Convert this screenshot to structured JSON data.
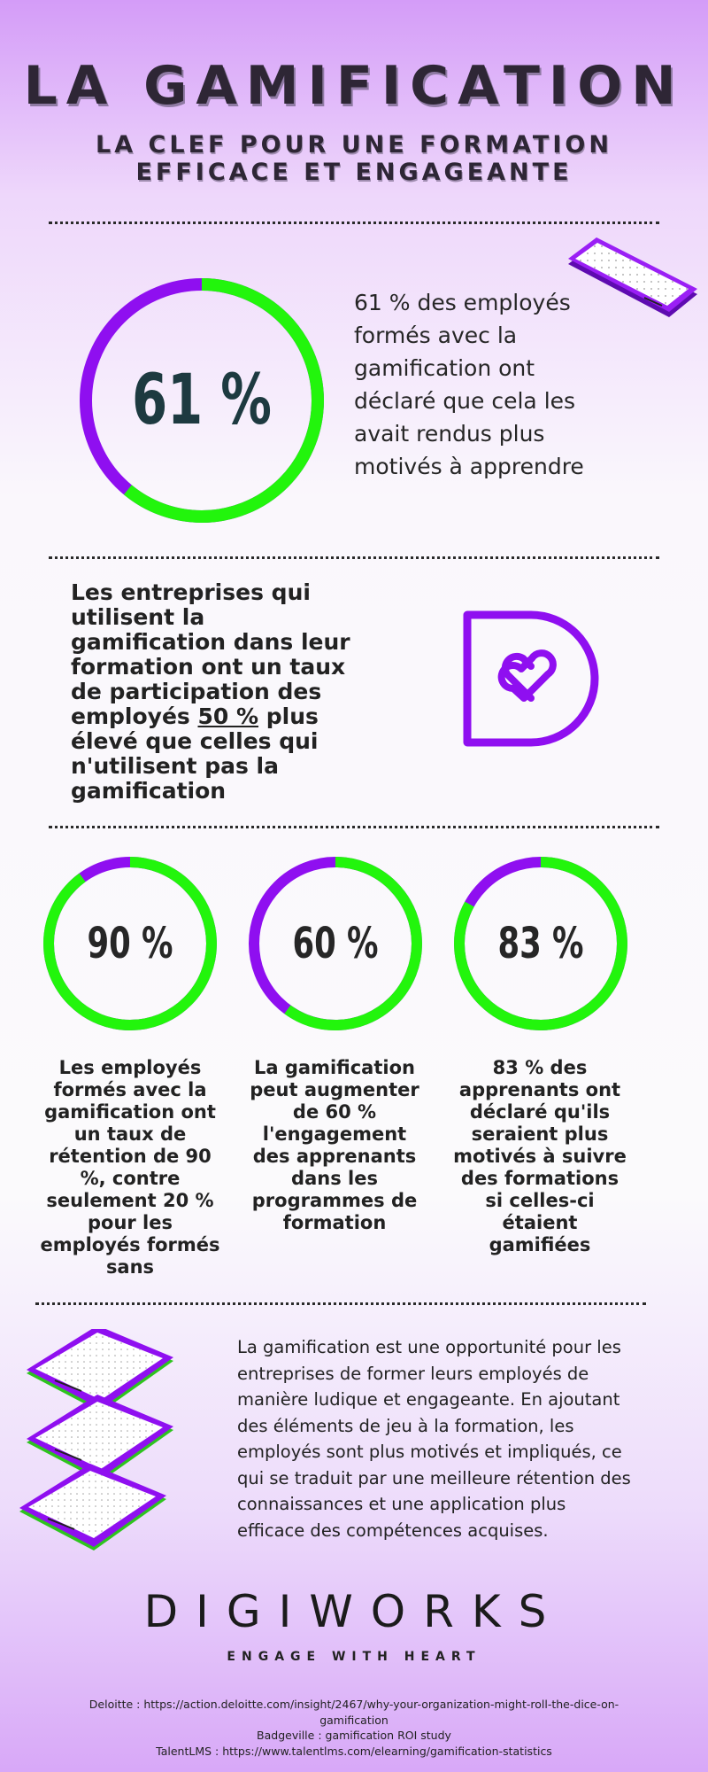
{
  "header": {
    "title": "LA GAMIFICATION",
    "subtitle_line1": "LA CLEF POUR UNE FORMATION",
    "subtitle_line2": "EFFICACE ET ENGAGEANTE"
  },
  "stat1": {
    "value_text": "61 %",
    "fraction": 0.61,
    "text": "61 % des employés formés avec la gamification ont déclaré que cela les avait rendus plus motivés à apprendre"
  },
  "stat2": {
    "text_before": "Les entreprises qui utilisent la gamification dans leur formation ont un taux de participation des employés ",
    "highlight": "50 %",
    "text_after": " plus élevé que celles qui n'utilisent pas la gamification",
    "icon": "heart-d-logo-icon"
  },
  "stats3": [
    {
      "value_text": "90 %",
      "fraction": 0.9,
      "text": "Les employés formés avec la gamification ont un taux de rétention de 90 %, contre seulement 20 % pour les employés formés sans"
    },
    {
      "value_text": "60 %",
      "fraction": 0.6,
      "text": "La gamification peut augmenter de 60 % l'engagement des apprenants dans les programmes de formation"
    },
    {
      "value_text": "83 %",
      "fraction": 0.83,
      "text": "83 % des apprenants ont déclaré qu'ils seraient plus motivés à suivre des formations si celles-ci étaient gamifiées"
    }
  ],
  "conclusion": "La gamification est une opportunité  pour les entreprises de former leurs employés de manière ludique et engageante. En ajoutant des éléments de jeu à la formation, les employés sont plus motivés et impliqués, ce qui se traduit par une meilleure rétention des connaissances et une application plus efficace des compétences acquises.",
  "brand": {
    "name": "DIGIWORKS",
    "tagline": "ENGAGE WITH HEART"
  },
  "sources": [
    "Deloitte : https://action.deloitte.com/insight/2467/why-your-organization-might-roll-the-dice-on-gamification",
    "Badgeville : gamification ROI study",
    "TalentLMS : https://www.talentlms.com/elearning/gamification-statistics"
  ],
  "colors": {
    "purple": "#8f0ff0",
    "green": "#22f50c",
    "dark": "#262626"
  }
}
